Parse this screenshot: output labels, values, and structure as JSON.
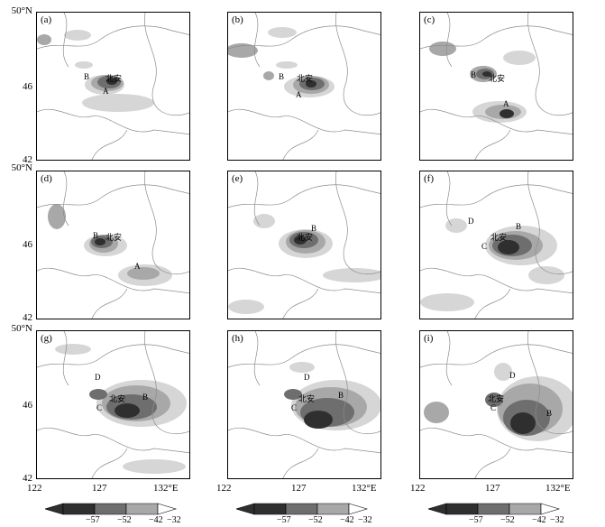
{
  "axes": {
    "y_labels": [
      "50°N",
      "46",
      "42"
    ],
    "x_labels": [
      "122",
      "127",
      "132°E"
    ]
  },
  "colors": {
    "level_57": "#2f2f2f",
    "level_52": "#6e6e6e",
    "level_42": "#a8a8a8",
    "level_32": "#d6d6d6",
    "border_line": "#8c8c8c"
  },
  "panels": [
    {
      "label": "(a)",
      "annotations": [
        "B",
        "北安",
        "A"
      ]
    },
    {
      "label": "(b)",
      "annotations": [
        "B",
        "北安",
        "A"
      ]
    },
    {
      "label": "(c)",
      "annotations": [
        "B",
        "北安",
        "A"
      ]
    },
    {
      "label": "(d)",
      "annotations": [
        "B",
        "北安",
        "A"
      ]
    },
    {
      "label": "(e)",
      "annotations": [
        "北安",
        "B"
      ]
    },
    {
      "label": "(f)",
      "annotations": [
        "D",
        "C",
        "北安",
        "B"
      ]
    },
    {
      "label": "(g)",
      "annotations": [
        "D",
        "C",
        "北安",
        "B"
      ]
    },
    {
      "label": "(h)",
      "annotations": [
        "D",
        "C",
        "北安",
        "B"
      ]
    },
    {
      "label": "(i)",
      "annotations": [
        "D",
        "C",
        "北安",
        "B"
      ]
    }
  ],
  "colorbar": {
    "ticks": [
      "−57",
      "−52",
      "−42",
      "−32"
    ]
  }
}
